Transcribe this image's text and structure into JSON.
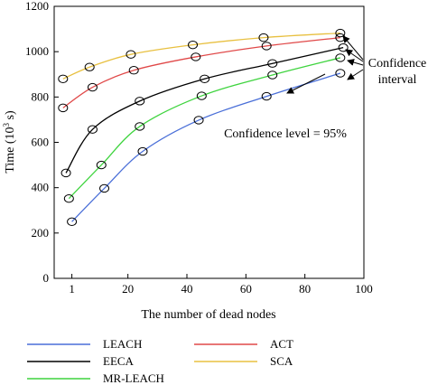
{
  "chart_data": {
    "type": "line",
    "title": "",
    "xlabel": "The number of dead nodes",
    "ylabel": "Time (10",
    "ylabel_sup": "3",
    "ylabel_suffix": " s)",
    "xlim": [
      -5,
      100
    ],
    "ylim": [
      0,
      1200
    ],
    "x_ticks": [
      1,
      20,
      40,
      60,
      80,
      100
    ],
    "y_ticks": [
      0,
      200,
      400,
      600,
      800,
      1000,
      1200
    ],
    "grid": false,
    "legend_position": "bottom",
    "series": [
      {
        "name": "LEACH",
        "color": "#4a6fd8",
        "x": [
          1,
          12,
          25,
          44,
          67,
          92
        ],
        "y": [
          250,
          397,
          560,
          698,
          803,
          905
        ]
      },
      {
        "name": "EECA",
        "color": "#000000",
        "x": [
          -1,
          8,
          24,
          46,
          69,
          93
        ],
        "y": [
          465,
          657,
          782,
          880,
          948,
          1018
        ]
      },
      {
        "name": "MR-LEACH",
        "color": "#3fd43f",
        "x": [
          0,
          11,
          24,
          45,
          69,
          92
        ],
        "y": [
          352,
          500,
          670,
          805,
          897,
          973
        ]
      },
      {
        "name": "ACT",
        "color": "#e04848",
        "x": [
          -2,
          8,
          22,
          43,
          67,
          92
        ],
        "y": [
          752,
          843,
          918,
          977,
          1025,
          1062
        ]
      },
      {
        "name": "SCA",
        "color": "#e8c040",
        "x": [
          -2,
          7,
          21,
          42,
          66,
          92
        ],
        "y": [
          880,
          932,
          988,
          1030,
          1062,
          1082
        ]
      }
    ],
    "annotations": {
      "confidence_interval": [
        "Confidence",
        "interval"
      ],
      "confidence_level": "Confidence level = 95%"
    }
  }
}
